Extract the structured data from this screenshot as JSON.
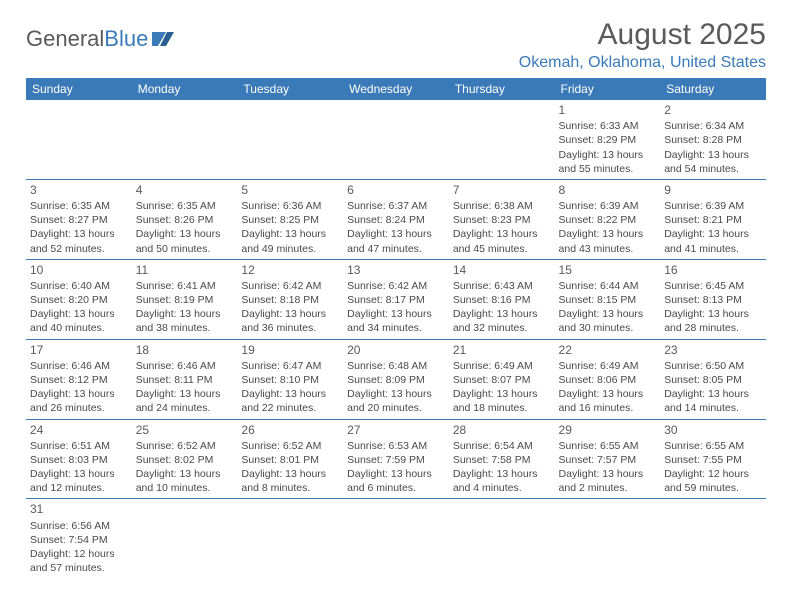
{
  "branding": {
    "logo_part1": "General",
    "logo_part2": "Blue",
    "logo_icon_color": "#3a7ab8"
  },
  "header": {
    "month_title": "August 2025",
    "location": "Okemah, Oklahoma, United States"
  },
  "colors": {
    "header_bg": "#3a7ab8",
    "header_text": "#ffffff",
    "border": "#3a7ab8",
    "text": "#4a4a4a",
    "title_text": "#5a5a5a"
  },
  "day_headers": [
    "Sunday",
    "Monday",
    "Tuesday",
    "Wednesday",
    "Thursday",
    "Friday",
    "Saturday"
  ],
  "weeks": [
    [
      null,
      null,
      null,
      null,
      null,
      {
        "d": "1",
        "sr": "Sunrise: 6:33 AM",
        "ss": "Sunset: 8:29 PM",
        "dl1": "Daylight: 13 hours",
        "dl2": "and 55 minutes."
      },
      {
        "d": "2",
        "sr": "Sunrise: 6:34 AM",
        "ss": "Sunset: 8:28 PM",
        "dl1": "Daylight: 13 hours",
        "dl2": "and 54 minutes."
      }
    ],
    [
      {
        "d": "3",
        "sr": "Sunrise: 6:35 AM",
        "ss": "Sunset: 8:27 PM",
        "dl1": "Daylight: 13 hours",
        "dl2": "and 52 minutes."
      },
      {
        "d": "4",
        "sr": "Sunrise: 6:35 AM",
        "ss": "Sunset: 8:26 PM",
        "dl1": "Daylight: 13 hours",
        "dl2": "and 50 minutes."
      },
      {
        "d": "5",
        "sr": "Sunrise: 6:36 AM",
        "ss": "Sunset: 8:25 PM",
        "dl1": "Daylight: 13 hours",
        "dl2": "and 49 minutes."
      },
      {
        "d": "6",
        "sr": "Sunrise: 6:37 AM",
        "ss": "Sunset: 8:24 PM",
        "dl1": "Daylight: 13 hours",
        "dl2": "and 47 minutes."
      },
      {
        "d": "7",
        "sr": "Sunrise: 6:38 AM",
        "ss": "Sunset: 8:23 PM",
        "dl1": "Daylight: 13 hours",
        "dl2": "and 45 minutes."
      },
      {
        "d": "8",
        "sr": "Sunrise: 6:39 AM",
        "ss": "Sunset: 8:22 PM",
        "dl1": "Daylight: 13 hours",
        "dl2": "and 43 minutes."
      },
      {
        "d": "9",
        "sr": "Sunrise: 6:39 AM",
        "ss": "Sunset: 8:21 PM",
        "dl1": "Daylight: 13 hours",
        "dl2": "and 41 minutes."
      }
    ],
    [
      {
        "d": "10",
        "sr": "Sunrise: 6:40 AM",
        "ss": "Sunset: 8:20 PM",
        "dl1": "Daylight: 13 hours",
        "dl2": "and 40 minutes."
      },
      {
        "d": "11",
        "sr": "Sunrise: 6:41 AM",
        "ss": "Sunset: 8:19 PM",
        "dl1": "Daylight: 13 hours",
        "dl2": "and 38 minutes."
      },
      {
        "d": "12",
        "sr": "Sunrise: 6:42 AM",
        "ss": "Sunset: 8:18 PM",
        "dl1": "Daylight: 13 hours",
        "dl2": "and 36 minutes."
      },
      {
        "d": "13",
        "sr": "Sunrise: 6:42 AM",
        "ss": "Sunset: 8:17 PM",
        "dl1": "Daylight: 13 hours",
        "dl2": "and 34 minutes."
      },
      {
        "d": "14",
        "sr": "Sunrise: 6:43 AM",
        "ss": "Sunset: 8:16 PM",
        "dl1": "Daylight: 13 hours",
        "dl2": "and 32 minutes."
      },
      {
        "d": "15",
        "sr": "Sunrise: 6:44 AM",
        "ss": "Sunset: 8:15 PM",
        "dl1": "Daylight: 13 hours",
        "dl2": "and 30 minutes."
      },
      {
        "d": "16",
        "sr": "Sunrise: 6:45 AM",
        "ss": "Sunset: 8:13 PM",
        "dl1": "Daylight: 13 hours",
        "dl2": "and 28 minutes."
      }
    ],
    [
      {
        "d": "17",
        "sr": "Sunrise: 6:46 AM",
        "ss": "Sunset: 8:12 PM",
        "dl1": "Daylight: 13 hours",
        "dl2": "and 26 minutes."
      },
      {
        "d": "18",
        "sr": "Sunrise: 6:46 AM",
        "ss": "Sunset: 8:11 PM",
        "dl1": "Daylight: 13 hours",
        "dl2": "and 24 minutes."
      },
      {
        "d": "19",
        "sr": "Sunrise: 6:47 AM",
        "ss": "Sunset: 8:10 PM",
        "dl1": "Daylight: 13 hours",
        "dl2": "and 22 minutes."
      },
      {
        "d": "20",
        "sr": "Sunrise: 6:48 AM",
        "ss": "Sunset: 8:09 PM",
        "dl1": "Daylight: 13 hours",
        "dl2": "and 20 minutes."
      },
      {
        "d": "21",
        "sr": "Sunrise: 6:49 AM",
        "ss": "Sunset: 8:07 PM",
        "dl1": "Daylight: 13 hours",
        "dl2": "and 18 minutes."
      },
      {
        "d": "22",
        "sr": "Sunrise: 6:49 AM",
        "ss": "Sunset: 8:06 PM",
        "dl1": "Daylight: 13 hours",
        "dl2": "and 16 minutes."
      },
      {
        "d": "23",
        "sr": "Sunrise: 6:50 AM",
        "ss": "Sunset: 8:05 PM",
        "dl1": "Daylight: 13 hours",
        "dl2": "and 14 minutes."
      }
    ],
    [
      {
        "d": "24",
        "sr": "Sunrise: 6:51 AM",
        "ss": "Sunset: 8:03 PM",
        "dl1": "Daylight: 13 hours",
        "dl2": "and 12 minutes."
      },
      {
        "d": "25",
        "sr": "Sunrise: 6:52 AM",
        "ss": "Sunset: 8:02 PM",
        "dl1": "Daylight: 13 hours",
        "dl2": "and 10 minutes."
      },
      {
        "d": "26",
        "sr": "Sunrise: 6:52 AM",
        "ss": "Sunset: 8:01 PM",
        "dl1": "Daylight: 13 hours",
        "dl2": "and 8 minutes."
      },
      {
        "d": "27",
        "sr": "Sunrise: 6:53 AM",
        "ss": "Sunset: 7:59 PM",
        "dl1": "Daylight: 13 hours",
        "dl2": "and 6 minutes."
      },
      {
        "d": "28",
        "sr": "Sunrise: 6:54 AM",
        "ss": "Sunset: 7:58 PM",
        "dl1": "Daylight: 13 hours",
        "dl2": "and 4 minutes."
      },
      {
        "d": "29",
        "sr": "Sunrise: 6:55 AM",
        "ss": "Sunset: 7:57 PM",
        "dl1": "Daylight: 13 hours",
        "dl2": "and 2 minutes."
      },
      {
        "d": "30",
        "sr": "Sunrise: 6:55 AM",
        "ss": "Sunset: 7:55 PM",
        "dl1": "Daylight: 12 hours",
        "dl2": "and 59 minutes."
      }
    ],
    [
      {
        "d": "31",
        "sr": "Sunrise: 6:56 AM",
        "ss": "Sunset: 7:54 PM",
        "dl1": "Daylight: 12 hours",
        "dl2": "and 57 minutes."
      },
      null,
      null,
      null,
      null,
      null,
      null
    ]
  ]
}
